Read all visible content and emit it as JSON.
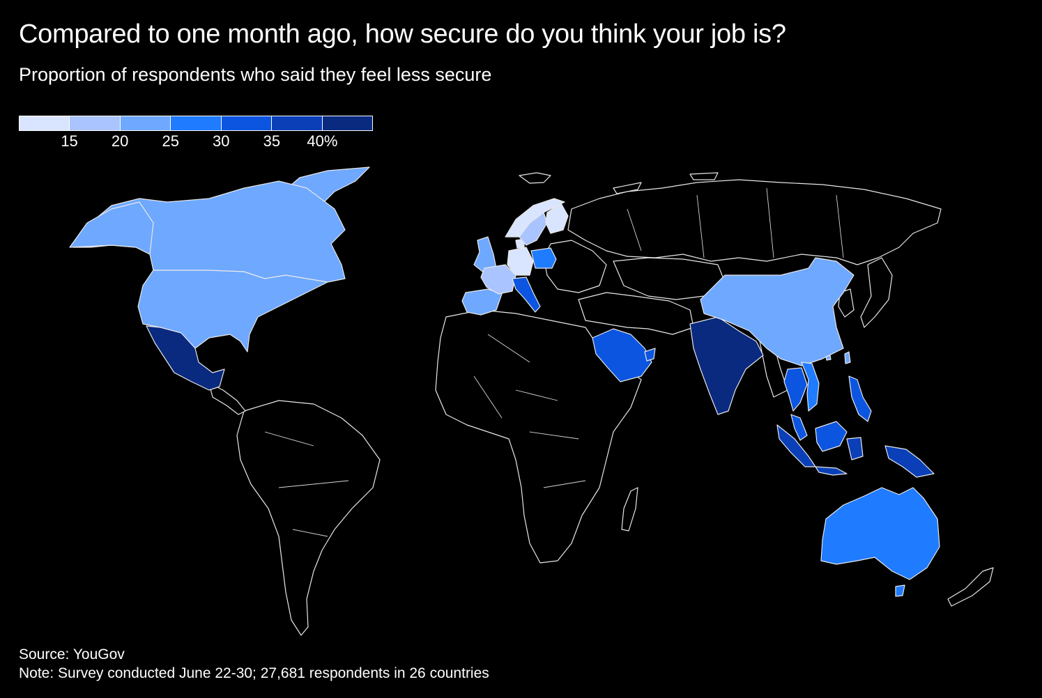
{
  "header": {
    "title": "Compared to one month ago, how secure do you think your job is?",
    "subtitle": "Proportion of respondents who said they feel less secure"
  },
  "legend": {
    "colors": [
      "#d9e4ff",
      "#a9c4ff",
      "#6ea8ff",
      "#1f7bff",
      "#0b55e0",
      "#0a3fb8",
      "#0a2a80"
    ],
    "ticks": [
      "15",
      "20",
      "25",
      "30",
      "35",
      "40%"
    ]
  },
  "countries": [
    {
      "name": "Canada",
      "bin": 2
    },
    {
      "name": "United States",
      "bin": 2
    },
    {
      "name": "Mexico",
      "bin": 6
    },
    {
      "name": "United Kingdom",
      "bin": 2
    },
    {
      "name": "Spain",
      "bin": 2
    },
    {
      "name": "France",
      "bin": 1
    },
    {
      "name": "Germany",
      "bin": 0
    },
    {
      "name": "Italy",
      "bin": 4
    },
    {
      "name": "Poland",
      "bin": 3
    },
    {
      "name": "Sweden",
      "bin": 1
    },
    {
      "name": "Norway",
      "bin": 0
    },
    {
      "name": "Finland",
      "bin": 0
    },
    {
      "name": "Denmark",
      "bin": 0
    },
    {
      "name": "Saudi Arabia",
      "bin": 4
    },
    {
      "name": "United Arab Emirates",
      "bin": 4
    },
    {
      "name": "India",
      "bin": 6
    },
    {
      "name": "China",
      "bin": 2
    },
    {
      "name": "Thailand",
      "bin": 4
    },
    {
      "name": "Vietnam",
      "bin": 3
    },
    {
      "name": "Philippines",
      "bin": 4
    },
    {
      "name": "Malaysia",
      "bin": 4
    },
    {
      "name": "Indonesia",
      "bin": 5
    },
    {
      "name": "Australia",
      "bin": 3
    },
    {
      "name": "Greenland",
      "bin": 2
    },
    {
      "name": "Taiwan",
      "bin": 2
    },
    {
      "name": "Hong Kong",
      "bin": 2
    }
  ],
  "footer": {
    "source": "Source: YouGov",
    "note": "Note: Survey conducted June 22-30; 27,681 respondents in 26 countries"
  }
}
